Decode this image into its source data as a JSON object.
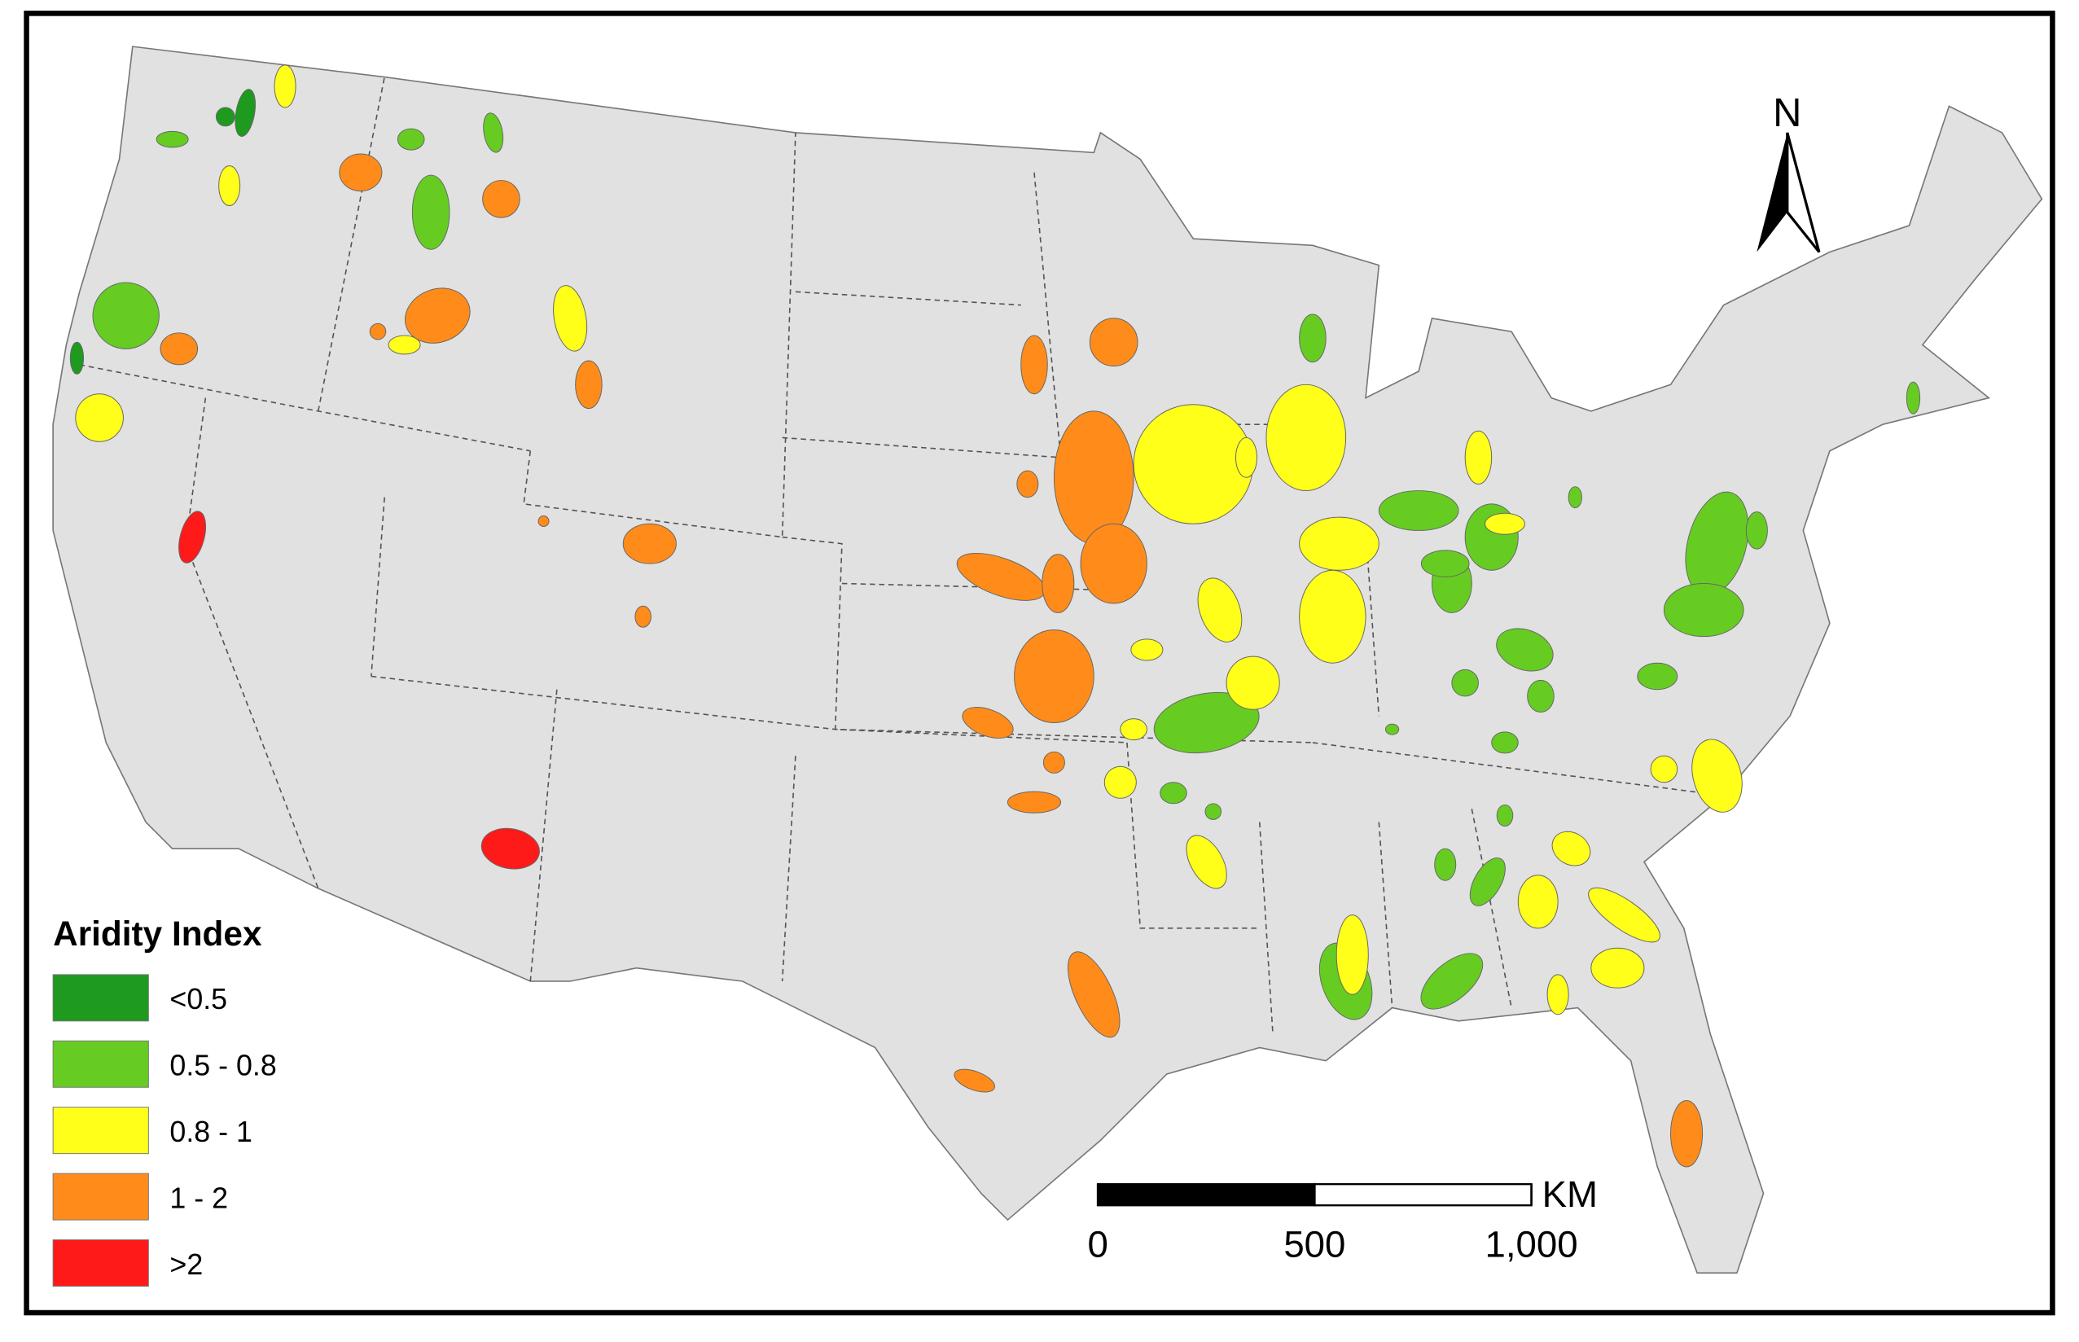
{
  "legend": {
    "title": "Aridity Index",
    "items": [
      {
        "label": "<0.5",
        "color": "#1e9a1e"
      },
      {
        "label": "0.5 - 0.8",
        "color": "#66cc22"
      },
      {
        "label": "0.8 - 1",
        "color": "#ffff1a"
      },
      {
        "label": "1 - 2",
        "color": "#ff8c1a"
      },
      {
        "label": ">2",
        "color": "#ff1a1a"
      }
    ]
  },
  "north_arrow": {
    "label": "N"
  },
  "scale_bar": {
    "unit": "KM",
    "ticks": [
      0,
      500,
      {
        "value": 1000,
        "label": "1,000"
      }
    ]
  }
}
